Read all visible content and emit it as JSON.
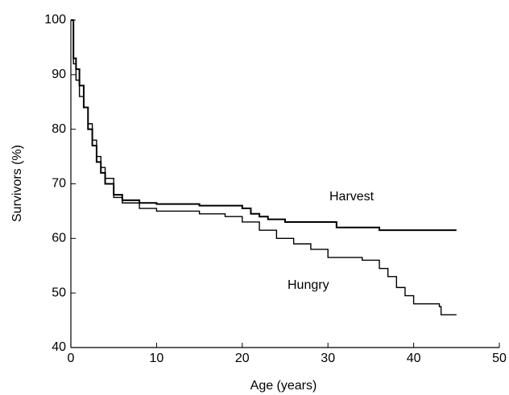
{
  "chart_data": {
    "type": "step",
    "xlabel": "Age (years)",
    "ylabel": "Survivors (%)",
    "xlim": [
      0,
      50
    ],
    "xticks": [
      0,
      10,
      20,
      30,
      40,
      50
    ],
    "ylim": [
      40,
      100
    ],
    "yticks": [
      40,
      50,
      60,
      70,
      80,
      90,
      100
    ],
    "grid": false,
    "series": [
      {
        "name": "Harvest",
        "color": "#000000",
        "x": [
          0,
          0.3,
          0.6,
          1,
          1.5,
          2,
          2.5,
          3,
          3.5,
          4,
          5,
          6,
          8,
          10,
          15,
          20,
          21,
          22,
          23,
          25,
          31,
          36,
          45
        ],
        "values": [
          100,
          93,
          91,
          88,
          84,
          80,
          77,
          74,
          72,
          70,
          68,
          67,
          66.5,
          66.3,
          66,
          65.5,
          64.5,
          64,
          63.5,
          63,
          62,
          61.5,
          61.5
        ]
      },
      {
        "name": "Hungry",
        "color": "#000000",
        "x": [
          0,
          0.3,
          0.6,
          1,
          1.5,
          2,
          2.5,
          3,
          3.5,
          4,
          5,
          6,
          8,
          10,
          15,
          18,
          20,
          22,
          24,
          26,
          28,
          30,
          34,
          36,
          37,
          38,
          39,
          40,
          43,
          43.2,
          45
        ],
        "values": [
          100,
          92,
          89,
          86,
          84,
          81,
          78,
          75,
          73,
          71,
          67.5,
          66.5,
          65.5,
          65,
          64.5,
          64,
          63,
          61.5,
          60,
          59,
          58,
          56.5,
          56,
          54.5,
          53,
          51,
          49.5,
          48,
          47.5,
          46,
          46
        ]
      }
    ]
  }
}
